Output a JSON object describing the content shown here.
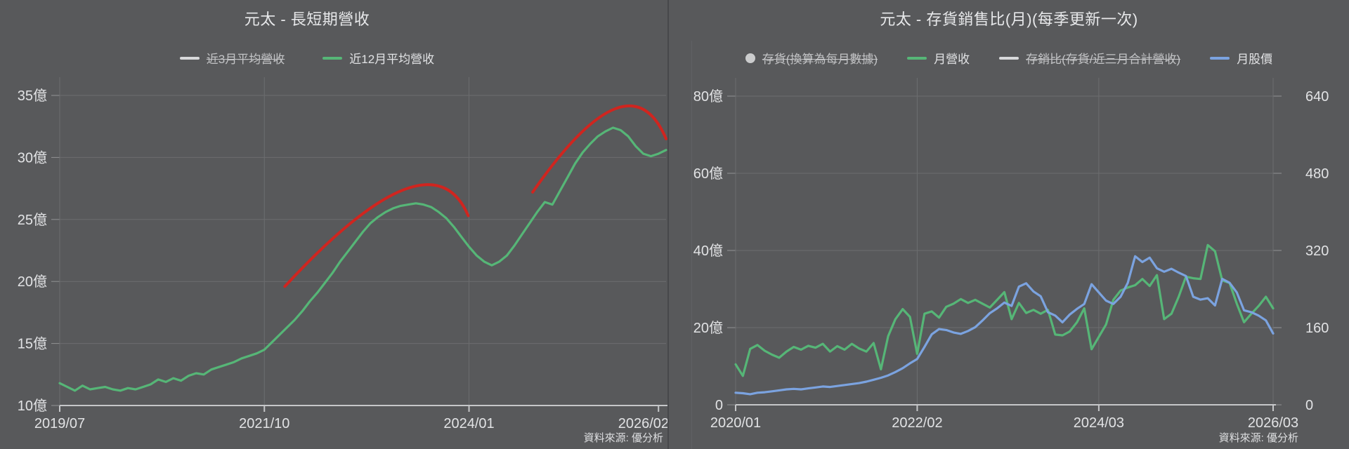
{
  "page": {
    "background": "#58595b",
    "gridline_color": "#6c6d6f",
    "axis_color": "#c6c7c9",
    "text_color": "#e2e3e5"
  },
  "chart_data": [
    {
      "type": "line",
      "title": "元太 - 長短期營收",
      "source": "資料來源: 優分析",
      "x_start": "2019/07",
      "x_end": "2026/03",
      "x_freq": "monthly",
      "x_tick_labels": [
        "2019/07",
        "2021/10",
        "2024/01",
        "2026/02"
      ],
      "x_tick_indices": [
        0,
        27,
        54,
        79
      ],
      "y_tick_labels": [
        "10億",
        "15億",
        "20億",
        "25億",
        "30億",
        "35億"
      ],
      "ylim": [
        10,
        35
      ],
      "grid": true,
      "legend_position": "top",
      "series": [
        {
          "name": "近3月平均營收",
          "color": "#d8d9db",
          "marker": "line",
          "hidden": true,
          "values": []
        },
        {
          "name": "近12月平均營收",
          "color": "#56b677",
          "marker": "line",
          "hidden": false,
          "values": [
            11.8,
            11.5,
            11.2,
            11.6,
            11.3,
            11.4,
            11.5,
            11.3,
            11.2,
            11.4,
            11.3,
            11.5,
            11.7,
            12.1,
            11.9,
            12.2,
            12.0,
            12.4,
            12.6,
            12.5,
            12.9,
            13.1,
            13.3,
            13.5,
            13.8,
            14.0,
            14.2,
            14.5,
            15.1,
            15.7,
            16.3,
            16.9,
            17.6,
            18.4,
            19.1,
            19.9,
            20.7,
            21.6,
            22.4,
            23.2,
            24.0,
            24.7,
            25.2,
            25.6,
            25.9,
            26.1,
            26.2,
            26.3,
            26.2,
            26.0,
            25.6,
            25.1,
            24.4,
            23.6,
            22.8,
            22.1,
            21.6,
            21.3,
            21.6,
            22.1,
            22.9,
            23.8,
            24.7,
            25.6,
            26.4,
            26.2,
            27.3,
            28.4,
            29.5,
            30.4,
            31.1,
            31.7,
            32.1,
            32.4,
            32.2,
            31.7,
            30.9,
            30.3,
            30.1,
            30.3,
            30.6
          ]
        }
      ],
      "annotations": [
        {
          "name": "cycle-arc-1",
          "type": "hand-drawn-arc",
          "color": "#d0251f",
          "points": [
            {
              "i": 29.7,
              "v": 19.6
            },
            {
              "i": 45.4,
              "v": 27.4
            },
            {
              "i": 53.9,
              "v": 25.3
            }
          ]
        },
        {
          "name": "cycle-arc-2",
          "type": "hand-drawn-arc",
          "color": "#d0251f",
          "points": [
            {
              "i": 62.4,
              "v": 27.2
            },
            {
              "i": 73.2,
              "v": 33.9
            },
            {
              "i": 80.0,
              "v": 31.5
            }
          ]
        }
      ]
    },
    {
      "type": "line",
      "title": "元太 - 存貨銷售比(月)(每季更新一次)",
      "source": "資料來源: 優分析",
      "x_start": "2020/01",
      "x_end": "2026/03",
      "x_freq": "monthly",
      "x_tick_labels": [
        "2020/01",
        "2022/02",
        "2024/03",
        "2026/03"
      ],
      "x_tick_indices": [
        0,
        25,
        50,
        74
      ],
      "y_left_tick_labels": [
        "0",
        "20億",
        "40億",
        "60億",
        "80億"
      ],
      "y_left_lim": [
        0,
        80
      ],
      "y_right_tick_labels": [
        "0",
        "160",
        "320",
        "480",
        "640"
      ],
      "y_right_lim": [
        0,
        640
      ],
      "grid": true,
      "legend_position": "top",
      "series": [
        {
          "name": "存貨(換算為每月數據)",
          "color": "#cbcccd",
          "marker": "circle",
          "hidden": true,
          "axis": "left",
          "values": []
        },
        {
          "name": "月營收",
          "color": "#56b677",
          "marker": "line",
          "hidden": false,
          "axis": "left",
          "values": [
            10.5,
            7.5,
            14.5,
            15.5,
            14.0,
            13.0,
            12.2,
            13.8,
            15.0,
            14.3,
            15.3,
            14.8,
            15.8,
            13.8,
            15.2,
            14.3,
            15.8,
            14.6,
            13.8,
            16.0,
            9.2,
            17.8,
            22.2,
            24.8,
            22.8,
            13.2,
            23.6,
            24.2,
            22.6,
            25.4,
            26.2,
            27.4,
            26.4,
            27.2,
            26.2,
            25.2,
            27.2,
            29.2,
            22.2,
            26.4,
            23.8,
            24.6,
            23.6,
            24.6,
            18.2,
            18.0,
            19.0,
            21.4,
            25.0,
            14.4,
            17.6,
            20.8,
            27.2,
            29.6,
            30.4,
            31.0,
            32.6,
            30.8,
            33.6,
            22.2,
            23.6,
            28.0,
            33.2,
            32.8,
            32.6,
            41.4,
            39.8,
            32.2,
            31.6,
            26.2,
            21.4,
            23.6,
            25.6,
            28.0,
            25.0
          ]
        },
        {
          "name": "存銷比(存貨/近三月合計營收)",
          "color": "#d8d9db",
          "marker": "line",
          "hidden": true,
          "axis": "left",
          "values": []
        },
        {
          "name": "月股價",
          "color": "#7ba3e0",
          "marker": "line",
          "hidden": false,
          "axis": "right",
          "values": [
            25,
            24,
            22,
            25,
            26,
            28,
            30,
            32,
            33,
            32,
            34,
            36,
            38,
            37,
            39,
            41,
            43,
            45,
            48,
            52,
            56,
            61,
            68,
            76,
            86,
            95,
            120,
            146,
            157,
            155,
            150,
            147,
            153,
            161,
            175,
            190,
            200,
            212,
            205,
            245,
            252,
            235,
            225,
            192,
            185,
            171,
            187,
            199,
            209,
            250,
            233,
            216,
            209,
            224,
            253,
            308,
            296,
            305,
            283,
            276,
            282,
            274,
            267,
            224,
            218,
            221,
            206,
            261,
            253,
            233,
            196,
            192,
            185,
            175,
            148
          ]
        }
      ],
      "annotations": []
    }
  ]
}
